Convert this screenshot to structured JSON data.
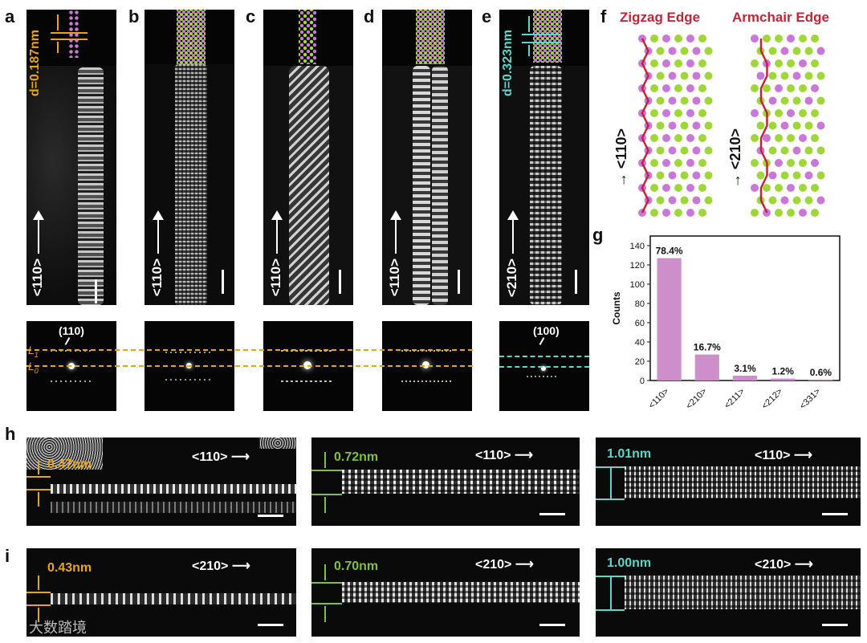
{
  "panel_labels": {
    "a": "a",
    "b": "b",
    "c": "c",
    "d": "d",
    "e": "e",
    "f": "f",
    "g": "g",
    "h": "h",
    "i": "i"
  },
  "stem_panels": {
    "a": {
      "direction": "<110>",
      "spacing": "d=0.187nm"
    },
    "b": {
      "direction": "<110>"
    },
    "c": {
      "direction": "<110>"
    },
    "d": {
      "direction": "<110>"
    },
    "e": {
      "direction": "<210>",
      "spacing": "d=0.323nm"
    }
  },
  "fft": {
    "plane_a": "(110)",
    "plane_e": "(100)",
    "line_L1": "L",
    "line_L1_sub": "1",
    "line_L0": "L",
    "line_L0_sub": "0"
  },
  "panel_f": {
    "zigzag_title": "Zigzag Edge",
    "armchair_title": "Armchair Edge",
    "zigzag_direction": "<110>",
    "armchair_direction": "<210>"
  },
  "colors": {
    "orange": "#e8a317",
    "green": "#7cc043",
    "cyan": "#5ed6c8",
    "edge_red": "#c0263a",
    "bar": "#cc8fc9",
    "atom_purple": "#c978d8",
    "atom_green": "#9fd63a"
  },
  "chart_data": {
    "type": "bar",
    "categories": [
      "<110>",
      "<210>",
      "<211>",
      "<212>",
      "<331>"
    ],
    "values": [
      127,
      27,
      5,
      2,
      1
    ],
    "data_labels": [
      "78.4%",
      "16.7%",
      "3.1%",
      "1.2%",
      "0.6%"
    ],
    "xlabel": "",
    "ylabel": "Counts",
    "ylim": [
      0,
      150
    ],
    "yticks": [
      0,
      20,
      40,
      60,
      80,
      100,
      120,
      140
    ],
    "grid": false
  },
  "row_h": [
    {
      "measure": "0.47nm",
      "direction": "<110>"
    },
    {
      "measure": "0.72nm",
      "direction": "<110>"
    },
    {
      "measure": "1.01nm",
      "direction": "<110>"
    }
  ],
  "row_i": [
    {
      "measure": "0.43nm",
      "direction": "<210>"
    },
    {
      "measure": "0.70nm",
      "direction": "<210>"
    },
    {
      "measure": "1.00nm",
      "direction": "<210>"
    }
  ],
  "watermark": "大数踏境"
}
